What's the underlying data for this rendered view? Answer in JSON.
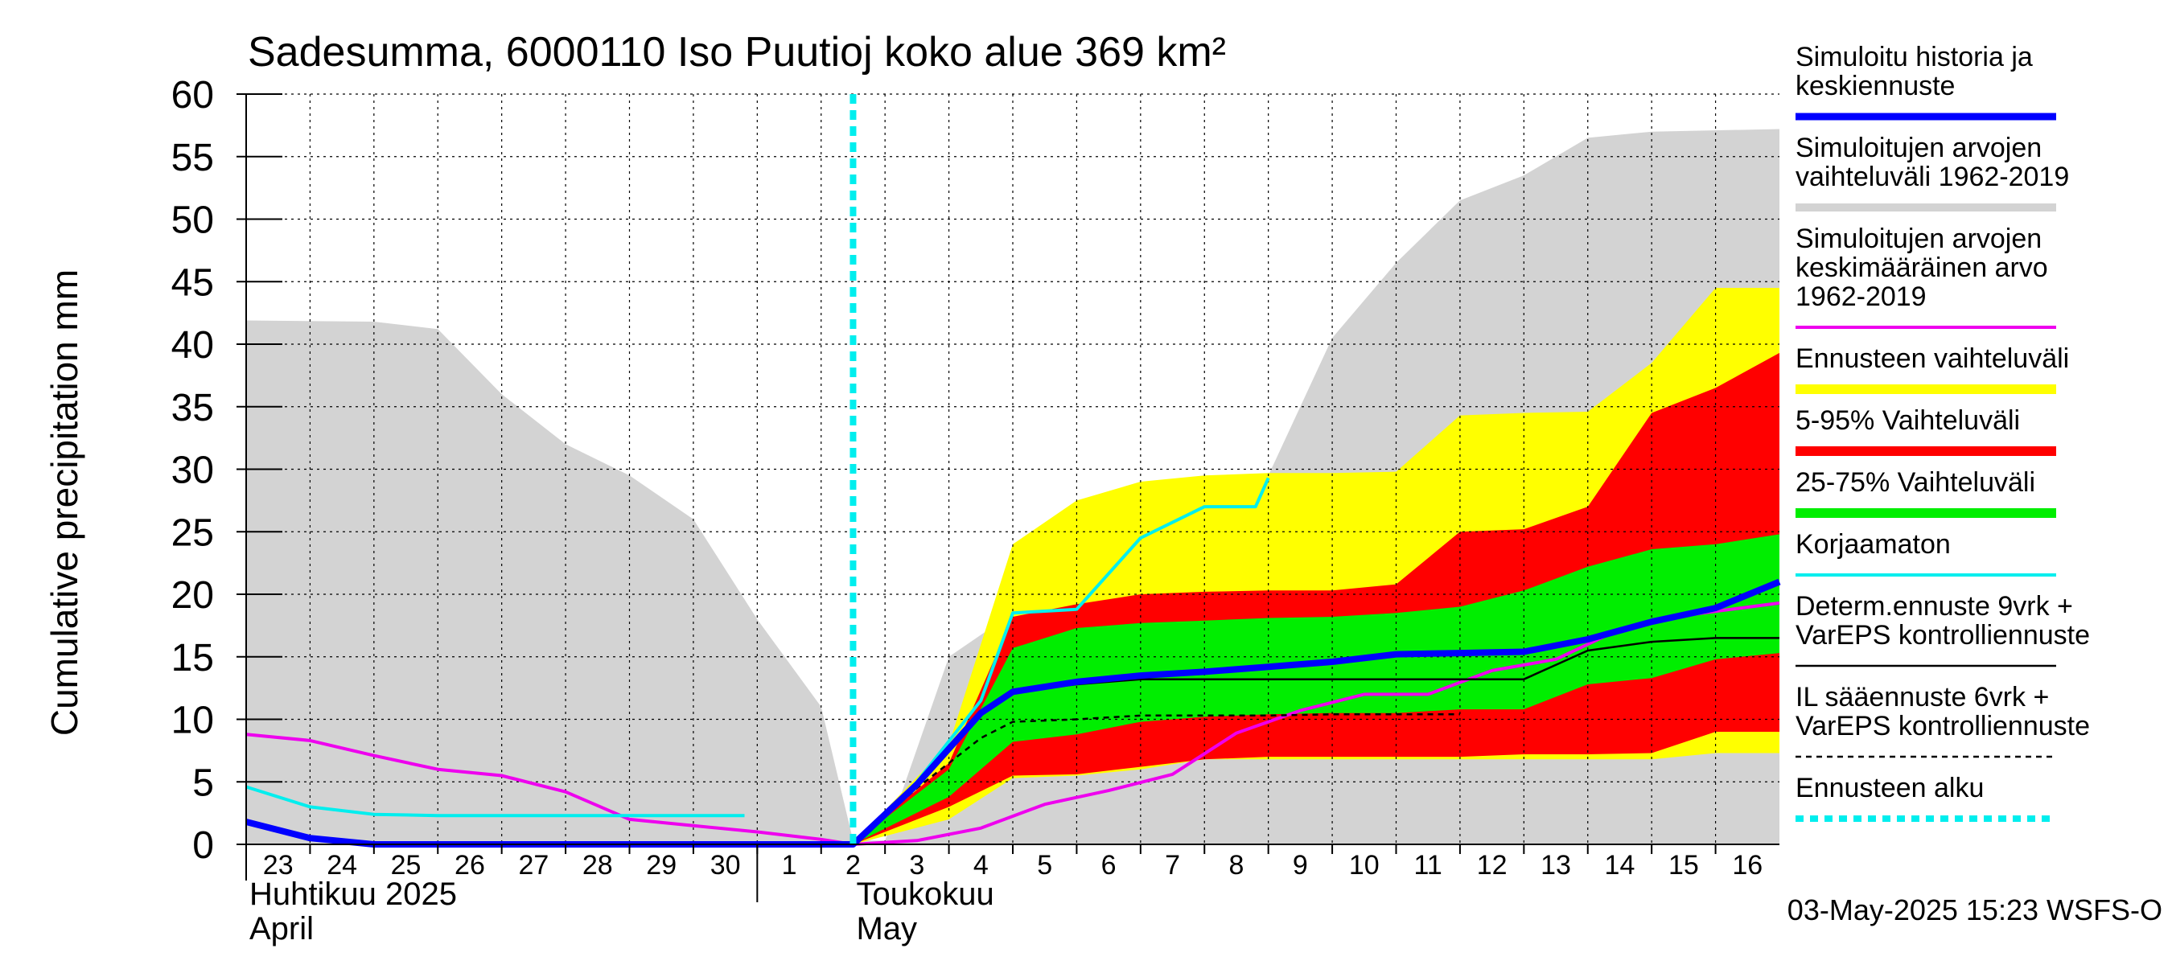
{
  "chart_data": {
    "type": "area",
    "title": "Sadesumma, 6000110 Iso Puutioj koko alue 369 km²",
    "ylabel": "Cumulative precipitation    mm",
    "ylim": [
      0,
      60
    ],
    "yticks": [
      0,
      5,
      10,
      15,
      20,
      25,
      30,
      35,
      40,
      45,
      50,
      55,
      60
    ],
    "xlim": [
      0,
      24
    ],
    "xticks": [
      {
        "x": 0,
        "label": "23"
      },
      {
        "x": 1,
        "label": "24"
      },
      {
        "x": 2,
        "label": "25"
      },
      {
        "x": 3,
        "label": "26"
      },
      {
        "x": 4,
        "label": "27"
      },
      {
        "x": 5,
        "label": "28"
      },
      {
        "x": 6,
        "label": "29"
      },
      {
        "x": 7,
        "label": "30"
      },
      {
        "x": 8,
        "label": "1"
      },
      {
        "x": 9,
        "label": "2"
      },
      {
        "x": 10,
        "label": "3"
      },
      {
        "x": 11,
        "label": "4"
      },
      {
        "x": 12,
        "label": "5"
      },
      {
        "x": 13,
        "label": "6"
      },
      {
        "x": 14,
        "label": "7"
      },
      {
        "x": 15,
        "label": "8"
      },
      {
        "x": 16,
        "label": "9"
      },
      {
        "x": 17,
        "label": "10"
      },
      {
        "x": 18,
        "label": "11"
      },
      {
        "x": 19,
        "label": "12"
      },
      {
        "x": 20,
        "label": "13"
      },
      {
        "x": 21,
        "label": "14"
      },
      {
        "x": 22,
        "label": "15"
      },
      {
        "x": 23,
        "label": "16"
      }
    ],
    "month_labels": [
      {
        "x": 0,
        "line1": "Huhtikuu  2025",
        "line2": "April"
      },
      {
        "x": 9.5,
        "line1": "Toukokuu",
        "line2": "May"
      }
    ],
    "month_separator_x": 8,
    "forecast_start_x": 9.5,
    "grid": true,
    "timestamp": "03-May-2025 15:23 WSFS-O",
    "colors": {
      "hist_range": "#d3d3d3",
      "forecast_range": "#ffff00",
      "p5_95": "#ff0000",
      "p25_75": "#00ee00",
      "sim_mean_forecast": "#0000ff",
      "hist_mean": "#ee00ee",
      "uncorrected": "#00eeee",
      "determ": "#000000",
      "il_forecast": "#000000",
      "forecast_start": "#00eeee"
    },
    "bands": [
      {
        "key": "hist_range",
        "upper": [
          [
            0,
            41.9
          ],
          [
            2,
            41.8
          ],
          [
            3,
            41.2
          ],
          [
            4,
            36
          ],
          [
            5,
            32
          ],
          [
            6,
            29.5
          ],
          [
            7,
            26
          ],
          [
            8,
            18
          ],
          [
            9,
            11
          ],
          [
            9.5,
            0.3
          ],
          [
            10,
            0.3
          ],
          [
            11,
            15
          ],
          [
            12,
            18.5
          ],
          [
            13,
            19
          ],
          [
            14,
            24.5
          ],
          [
            15,
            27
          ],
          [
            15.8,
            27
          ],
          [
            16,
            29.5
          ],
          [
            17,
            40.5
          ],
          [
            18,
            46.5
          ],
          [
            19,
            51.5
          ],
          [
            20,
            53.5
          ],
          [
            21,
            56.5
          ],
          [
            22,
            57
          ],
          [
            24,
            57.2
          ]
        ],
        "lower": [
          [
            0,
            0
          ],
          [
            24,
            0
          ]
        ]
      },
      {
        "key": "forecast_range",
        "upper": [
          [
            9.5,
            0.1
          ],
          [
            11,
            8
          ],
          [
            12,
            24
          ],
          [
            13,
            27.5
          ],
          [
            14,
            29
          ],
          [
            15,
            29.5
          ],
          [
            16,
            29.7
          ],
          [
            17,
            29.7
          ],
          [
            18,
            29.8
          ],
          [
            19,
            34.3
          ],
          [
            20,
            34.5
          ],
          [
            21,
            34.6
          ],
          [
            22,
            38.5
          ],
          [
            23,
            44.5
          ],
          [
            24,
            44.5
          ]
        ],
        "lower": [
          [
            9.5,
            0
          ],
          [
            11,
            2
          ],
          [
            12,
            5.3
          ],
          [
            13,
            5.5
          ],
          [
            14,
            6
          ],
          [
            15,
            6.8
          ],
          [
            16,
            6.8
          ],
          [
            17,
            6.8
          ],
          [
            18,
            6.8
          ],
          [
            19,
            6.8
          ],
          [
            20,
            6.8
          ],
          [
            21,
            6.8
          ],
          [
            22,
            6.8
          ],
          [
            23,
            7.3
          ],
          [
            24,
            7.3
          ]
        ]
      },
      {
        "key": "p5_95",
        "upper": [
          [
            9.5,
            0.1
          ],
          [
            11,
            6.5
          ],
          [
            12,
            18.2
          ],
          [
            13,
            19.2
          ],
          [
            14,
            20
          ],
          [
            15,
            20.2
          ],
          [
            16,
            20.3
          ],
          [
            17,
            20.3
          ],
          [
            18,
            20.8
          ],
          [
            19,
            25
          ],
          [
            20,
            25.2
          ],
          [
            21,
            27
          ],
          [
            22,
            34.5
          ],
          [
            23,
            36.5
          ],
          [
            24,
            39.3
          ]
        ],
        "lower": [
          [
            9.5,
            0
          ],
          [
            11,
            3
          ],
          [
            12,
            5.5
          ],
          [
            13,
            5.6
          ],
          [
            14,
            6.2
          ],
          [
            15,
            6.8
          ],
          [
            16,
            7
          ],
          [
            17,
            7
          ],
          [
            18,
            7
          ],
          [
            19,
            7
          ],
          [
            20,
            7.2
          ],
          [
            21,
            7.2
          ],
          [
            22,
            7.3
          ],
          [
            23,
            9
          ],
          [
            24,
            9
          ]
        ]
      },
      {
        "key": "p25_75",
        "upper": [
          [
            9.5,
            0.1
          ],
          [
            11,
            6
          ],
          [
            12,
            15.7
          ],
          [
            13,
            17.3
          ],
          [
            14,
            17.7
          ],
          [
            15,
            17.9
          ],
          [
            16,
            18.1
          ],
          [
            17,
            18.2
          ],
          [
            18,
            18.5
          ],
          [
            19,
            19
          ],
          [
            20,
            20.3
          ],
          [
            21,
            22.2
          ],
          [
            22,
            23.6
          ],
          [
            23,
            24
          ],
          [
            24,
            24.8
          ]
        ],
        "lower": [
          [
            9.5,
            0
          ],
          [
            11,
            3.8
          ],
          [
            12,
            8.2
          ],
          [
            13,
            8.8
          ],
          [
            14,
            9.8
          ],
          [
            15,
            10.2
          ],
          [
            16,
            10.4
          ],
          [
            17,
            10.5
          ],
          [
            18,
            10.5
          ],
          [
            19,
            10.8
          ],
          [
            20,
            10.8
          ],
          [
            21,
            12.8
          ],
          [
            22,
            13.3
          ],
          [
            23,
            14.8
          ],
          [
            24,
            15.3
          ]
        ]
      }
    ],
    "series": [
      {
        "key": "hist_mean",
        "width": 4,
        "dash": "",
        "points": [
          [
            0,
            8.8
          ],
          [
            1,
            8.3
          ],
          [
            2,
            7.1
          ],
          [
            3,
            6
          ],
          [
            4,
            5.5
          ],
          [
            5,
            4.2
          ],
          [
            6,
            2
          ],
          [
            7,
            1.5
          ],
          [
            8,
            1
          ],
          [
            9,
            0.4
          ],
          [
            9.5,
            0
          ],
          [
            10.5,
            0.3
          ],
          [
            11.5,
            1.3
          ],
          [
            12.5,
            3.2
          ],
          [
            13.5,
            4.3
          ],
          [
            14.5,
            5.6
          ],
          [
            15.5,
            8.9
          ],
          [
            16.5,
            10.7
          ],
          [
            17.5,
            12
          ],
          [
            18.5,
            12
          ],
          [
            19.5,
            13.9
          ],
          [
            20.5,
            14.8
          ],
          [
            21.5,
            17.2
          ],
          [
            22.5,
            18.3
          ],
          [
            24,
            19.3
          ]
        ]
      },
      {
        "key": "uncorrected",
        "width": 4,
        "dash": "",
        "points": [
          [
            0,
            4.6
          ],
          [
            1,
            3
          ],
          [
            2,
            2.4
          ],
          [
            3,
            2.3
          ],
          [
            4,
            2.3
          ],
          [
            5,
            2.3
          ],
          [
            6,
            2.3
          ],
          [
            7,
            2.3
          ],
          [
            7.8,
            2.3
          ]
        ]
      },
      {
        "key": "uncorrected",
        "width": 4,
        "dash": "",
        "points": [
          [
            9.5,
            0
          ],
          [
            10.5,
            5
          ],
          [
            11.5,
            11.5
          ],
          [
            12,
            18.5
          ],
          [
            13,
            18.8
          ],
          [
            14,
            24.5
          ],
          [
            15,
            27
          ],
          [
            15.8,
            27
          ],
          [
            16,
            29.3
          ]
        ]
      },
      {
        "key": "il_forecast",
        "width": 2.5,
        "dash": "7,6",
        "points": [
          [
            9.5,
            0
          ],
          [
            10.5,
            4.5
          ],
          [
            11.5,
            8.5
          ],
          [
            12,
            9.8
          ],
          [
            13,
            10
          ],
          [
            14,
            10.3
          ],
          [
            15,
            10.3
          ],
          [
            16,
            10.3
          ],
          [
            17,
            10.4
          ],
          [
            18,
            10.4
          ],
          [
            19,
            10.4
          ]
        ]
      },
      {
        "key": "determ",
        "width": 2.5,
        "dash": "",
        "points": [
          [
            9.5,
            0
          ],
          [
            10.5,
            5
          ],
          [
            11.5,
            10.5
          ],
          [
            12,
            12.2
          ],
          [
            13,
            12.8
          ],
          [
            14,
            13.2
          ],
          [
            15,
            13.2
          ],
          [
            16,
            13.2
          ],
          [
            17,
            13.2
          ],
          [
            18,
            13.2
          ],
          [
            19,
            13.2
          ],
          [
            20,
            13.2
          ],
          [
            21,
            15.5
          ],
          [
            22,
            16.2
          ],
          [
            23,
            16.5
          ],
          [
            24,
            16.5
          ]
        ]
      },
      {
        "key": "sim_mean_forecast",
        "width": 8,
        "dash": "",
        "points": [
          [
            0,
            1.8
          ],
          [
            1,
            0.5
          ],
          [
            2,
            0
          ],
          [
            3,
            0
          ],
          [
            4,
            0
          ],
          [
            5,
            0
          ],
          [
            6,
            0
          ],
          [
            7,
            0
          ],
          [
            8,
            0
          ],
          [
            9,
            0
          ],
          [
            9.5,
            0
          ],
          [
            10.5,
            4.8
          ],
          [
            11.5,
            10.5
          ],
          [
            12,
            12.2
          ],
          [
            13,
            13
          ],
          [
            14,
            13.5
          ],
          [
            15,
            13.8
          ],
          [
            16,
            14.2
          ],
          [
            17,
            14.6
          ],
          [
            18,
            15.2
          ],
          [
            19,
            15.3
          ],
          [
            20,
            15.4
          ],
          [
            21,
            16.4
          ],
          [
            22,
            17.8
          ],
          [
            23,
            18.9
          ],
          [
            24,
            21
          ]
        ]
      }
    ],
    "legend": [
      {
        "text": [
          "Simuloitu historia ja",
          "keskiennuste"
        ],
        "key": "sim_mean_forecast",
        "style": "line",
        "width": 9,
        "dash": ""
      },
      {
        "text": [
          "Simuloitujen arvojen",
          "vaihteluväli 1962-2019"
        ],
        "key": "hist_range",
        "style": "line",
        "width": 10,
        "dash": ""
      },
      {
        "text": [
          "Simuloitujen arvojen",
          "keskimääräinen arvo",
          "   1962-2019"
        ],
        "key": "hist_mean",
        "style": "line",
        "width": 4,
        "dash": ""
      },
      {
        "text": [
          "Ennusteen vaihteluväli"
        ],
        "key": "forecast_range",
        "style": "line",
        "width": 12,
        "dash": ""
      },
      {
        "text": [
          "5-95% Vaihteluväli"
        ],
        "key": "p5_95",
        "style": "line",
        "width": 12,
        "dash": ""
      },
      {
        "text": [
          "25-75% Vaihteluväli"
        ],
        "key": "p25_75",
        "style": "line",
        "width": 12,
        "dash": ""
      },
      {
        "text": [
          "Korjaamaton"
        ],
        "key": "uncorrected",
        "style": "line",
        "width": 4,
        "dash": ""
      },
      {
        "text": [
          "Determ.ennuste 9vrk +",
          "VarEPS kontrolliennuste"
        ],
        "key": "determ",
        "style": "line",
        "width": 2.5,
        "dash": ""
      },
      {
        "text": [
          "IL sääennuste 6vrk  +",
          "  VarEPS kontrolliennuste"
        ],
        "key": "il_forecast",
        "style": "line",
        "width": 2.5,
        "dash": "7,6"
      },
      {
        "text": [
          "Ennusteen alku"
        ],
        "key": "forecast_start",
        "style": "line",
        "width": 8,
        "dash": "10,8"
      }
    ]
  }
}
